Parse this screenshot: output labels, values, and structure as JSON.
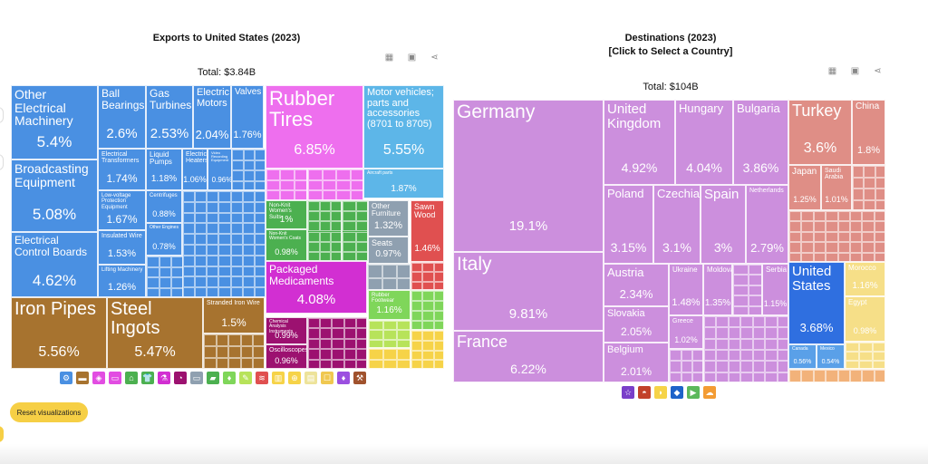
{
  "left": {
    "title": "Exports to United States (2023)",
    "total": "Total: $3.84B",
    "tools": [
      "table-icon",
      "image-icon",
      "share-icon"
    ],
    "legend": [
      {
        "color": "#4a90e2",
        "icon": "⚙"
      },
      {
        "color": "#a7732f",
        "icon": "▬"
      },
      {
        "color": "#e24de2",
        "icon": "◈"
      },
      {
        "color": "#e24de2",
        "icon": "▭"
      },
      {
        "color": "#4cb050",
        "icon": "⌂"
      },
      {
        "color": "#4cb050",
        "icon": "👕"
      },
      {
        "color": "#d22fd2",
        "icon": "⚗"
      },
      {
        "color": "#9c1170",
        "icon": "◔"
      },
      {
        "color": "#8fa0b0",
        "icon": "▭"
      },
      {
        "color": "#4cb050",
        "icon": "▰"
      },
      {
        "color": "#7fd65a",
        "icon": "♦"
      },
      {
        "color": "#b7e35a",
        "icon": "✎"
      },
      {
        "color": "#e05050",
        "icon": "≋"
      },
      {
        "color": "#f6d348",
        "icon": "▥"
      },
      {
        "color": "#f6d348",
        "icon": "⊕"
      },
      {
        "color": "#ede39a",
        "icon": "▤"
      },
      {
        "color": "#f0c850",
        "icon": "☐"
      },
      {
        "color": "#9b4fe0",
        "icon": "♦"
      },
      {
        "color": "#a0522d",
        "icon": "⚒"
      }
    ]
  },
  "right": {
    "title": "Destinations (2023)",
    "subtitle": "[Click to Select a Country]",
    "total": "Total: $104B",
    "tools": [
      "table-icon",
      "image-icon",
      "share-icon"
    ],
    "legend": [
      {
        "color": "#7a3fc9",
        "icon": "☆"
      },
      {
        "color": "#c2412a",
        "icon": "◓"
      },
      {
        "color": "#f6d348",
        "icon": "◗"
      },
      {
        "color": "#1e63c9",
        "icon": "◆"
      },
      {
        "color": "#5cb85c",
        "icon": "▶"
      },
      {
        "color": "#f39c34",
        "icon": "☁"
      }
    ]
  },
  "reset_label": "Reset visualizations",
  "chart_data": [
    {
      "type": "treemap",
      "title": "Exports to United States (2023)",
      "total": "$3.84B",
      "items": [
        {
          "name": "Other Electrical Machinery",
          "share": 5.4
        },
        {
          "name": "Broadcasting Equipment",
          "share": 5.08
        },
        {
          "name": "Electrical Control Boards",
          "share": 4.62
        },
        {
          "name": "Ball Bearings",
          "share": 2.6
        },
        {
          "name": "Gas Turbines",
          "share": 2.53
        },
        {
          "name": "Electric Motors",
          "share": 2.04
        },
        {
          "name": "Valves",
          "share": 1.76
        },
        {
          "name": "Electrical Transformers",
          "share": 1.74
        },
        {
          "name": "Low-voltage Protection Equipment",
          "share": 1.67
        },
        {
          "name": "Insulated Wire",
          "share": 1.53
        },
        {
          "name": "Lifting Machinery",
          "share": 1.26
        },
        {
          "name": "Liquid Pumps",
          "share": 1.18
        },
        {
          "name": "Electric Heaters",
          "share": 1.06
        },
        {
          "name": "Video Recording Equipment",
          "share": 0.96
        },
        {
          "name": "Air Pumps",
          "share": 0.9
        },
        {
          "name": "Centrifuges",
          "share": 0.88
        },
        {
          "name": "Other Engines",
          "share": 0.78
        },
        {
          "name": "Rubber Tires",
          "share": 6.85
        },
        {
          "name": "Motor vehicles; parts and accessories (8701 to 8705)",
          "share": 5.55
        },
        {
          "name": "Aircraft parts",
          "share": 1.87
        },
        {
          "name": "Iron Pipes",
          "share": 5.56
        },
        {
          "name": "Steel Ingots",
          "share": 5.47
        },
        {
          "name": "Stranded Iron Wire",
          "share": 1.5
        },
        {
          "name": "Packaged Medicaments",
          "share": 4.08
        },
        {
          "name": "Non-Knit Women's Suits",
          "share": 1
        },
        {
          "name": "Non-Knit Women's Coats",
          "share": 0.98
        },
        {
          "name": "Other Furniture",
          "share": 1.32
        },
        {
          "name": "Seats",
          "share": 0.97
        },
        {
          "name": "Sawn Wood",
          "share": 1.46
        },
        {
          "name": "Rubber Footwear",
          "share": 1.16
        },
        {
          "name": "Chemical Analysis Instruments",
          "share": 0.99
        },
        {
          "name": "Oscilloscopes",
          "share": 0.96
        }
      ]
    },
    {
      "type": "treemap",
      "title": "Destinations (2023)",
      "total": "$104B",
      "items": [
        {
          "name": "Germany",
          "share": 19.1
        },
        {
          "name": "Italy",
          "share": 9.81
        },
        {
          "name": "France",
          "share": 6.22
        },
        {
          "name": "United Kingdom",
          "share": 4.92
        },
        {
          "name": "Hungary",
          "share": 4.04
        },
        {
          "name": "Bulgaria",
          "share": 3.86
        },
        {
          "name": "Poland",
          "share": 3.15
        },
        {
          "name": "Czechia",
          "share": 3.1
        },
        {
          "name": "Spain",
          "share": 3
        },
        {
          "name": "Netherlands",
          "share": 2.79
        },
        {
          "name": "Austria",
          "share": 2.34
        },
        {
          "name": "Slovakia",
          "share": 2.05
        },
        {
          "name": "Belgium",
          "share": 2.01
        },
        {
          "name": "Ukraine",
          "share": 1.48
        },
        {
          "name": "Moldova",
          "share": 1.35
        },
        {
          "name": "Serbia",
          "share": 1.15
        },
        {
          "name": "Greece",
          "share": 1.02
        },
        {
          "name": "Turkey",
          "share": 3.6
        },
        {
          "name": "China",
          "share": 1.8
        },
        {
          "name": "Japan",
          "share": 1.25
        },
        {
          "name": "Saudi Arabia",
          "share": 1.01
        },
        {
          "name": "United States",
          "share": 3.68
        },
        {
          "name": "Morocco",
          "share": 1.16
        },
        {
          "name": "Egypt",
          "share": 0.98
        },
        {
          "name": "Canada",
          "share": 0.56
        },
        {
          "name": "Mexico",
          "share": 0.54
        }
      ]
    }
  ]
}
